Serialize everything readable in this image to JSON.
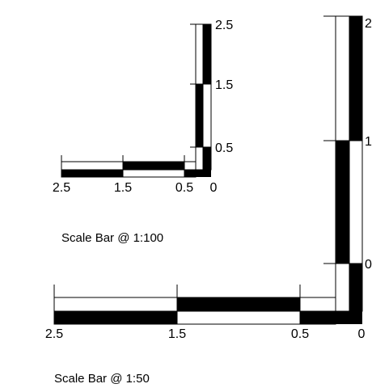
{
  "scale_bars": [
    {
      "caption": "Scale Bar @ 1:100",
      "horizontal_ticks": [
        "2.5",
        "1.5",
        "0.5",
        "0"
      ],
      "vertical_ticks": [
        "2.5",
        "1.5",
        "0.5"
      ]
    },
    {
      "caption": "Scale Bar @ 1:50",
      "horizontal_ticks": [
        "2.5",
        "1.5",
        "0.5",
        "0"
      ],
      "vertical_ticks": [
        "2",
        "1",
        "0"
      ]
    }
  ],
  "colors": {
    "ink": "#000000",
    "paper": "#ffffff"
  }
}
